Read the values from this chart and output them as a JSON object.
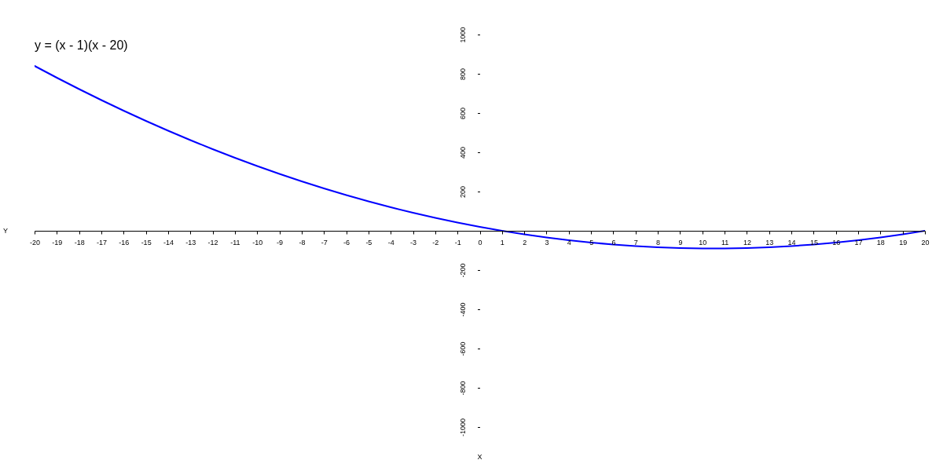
{
  "chart_data": {
    "type": "line",
    "title": "y = (x - 1)(x - 20)",
    "xlabel": "X",
    "ylabel": "Y",
    "x": [
      -20,
      -19,
      -18,
      -17,
      -16,
      -15,
      -14,
      -13,
      -12,
      -11,
      -10,
      -9,
      -8,
      -7,
      -6,
      -5,
      -4,
      -3,
      -2,
      -1,
      0,
      1,
      2,
      3,
      4,
      5,
      6,
      7,
      8,
      9,
      10,
      11,
      12,
      13,
      14,
      15,
      16,
      17,
      18,
      19,
      20
    ],
    "series": [
      {
        "color": "#0000ff",
        "values": [
          840,
          780,
          722,
          666,
          612,
          560,
          510,
          462,
          416,
          372,
          330,
          290,
          252,
          216,
          182,
          150,
          120,
          92,
          66,
          42,
          20,
          0,
          -18,
          -34,
          -48,
          -60,
          -70,
          -78,
          -84,
          -88,
          -90,
          -90,
          -88,
          -84,
          -78,
          -70,
          -60,
          -48,
          -34,
          -18,
          0
        ]
      }
    ],
    "xlim": [
      -20,
      20
    ],
    "ylim": [
      -1000,
      1000
    ],
    "xticks": [
      -20,
      -19,
      -18,
      -17,
      -16,
      -15,
      -14,
      -13,
      -12,
      -11,
      -10,
      -9,
      -8,
      -7,
      -6,
      -5,
      -4,
      -3,
      -2,
      -1,
      0,
      1,
      2,
      3,
      4,
      5,
      6,
      7,
      8,
      9,
      10,
      11,
      12,
      13,
      14,
      15,
      16,
      17,
      18,
      19,
      20
    ],
    "yticks": [
      -1000,
      -800,
      -600,
      -400,
      -200,
      200,
      400,
      600,
      800,
      1000
    ],
    "grid": false,
    "marker": "none",
    "line_style": "solid"
  }
}
